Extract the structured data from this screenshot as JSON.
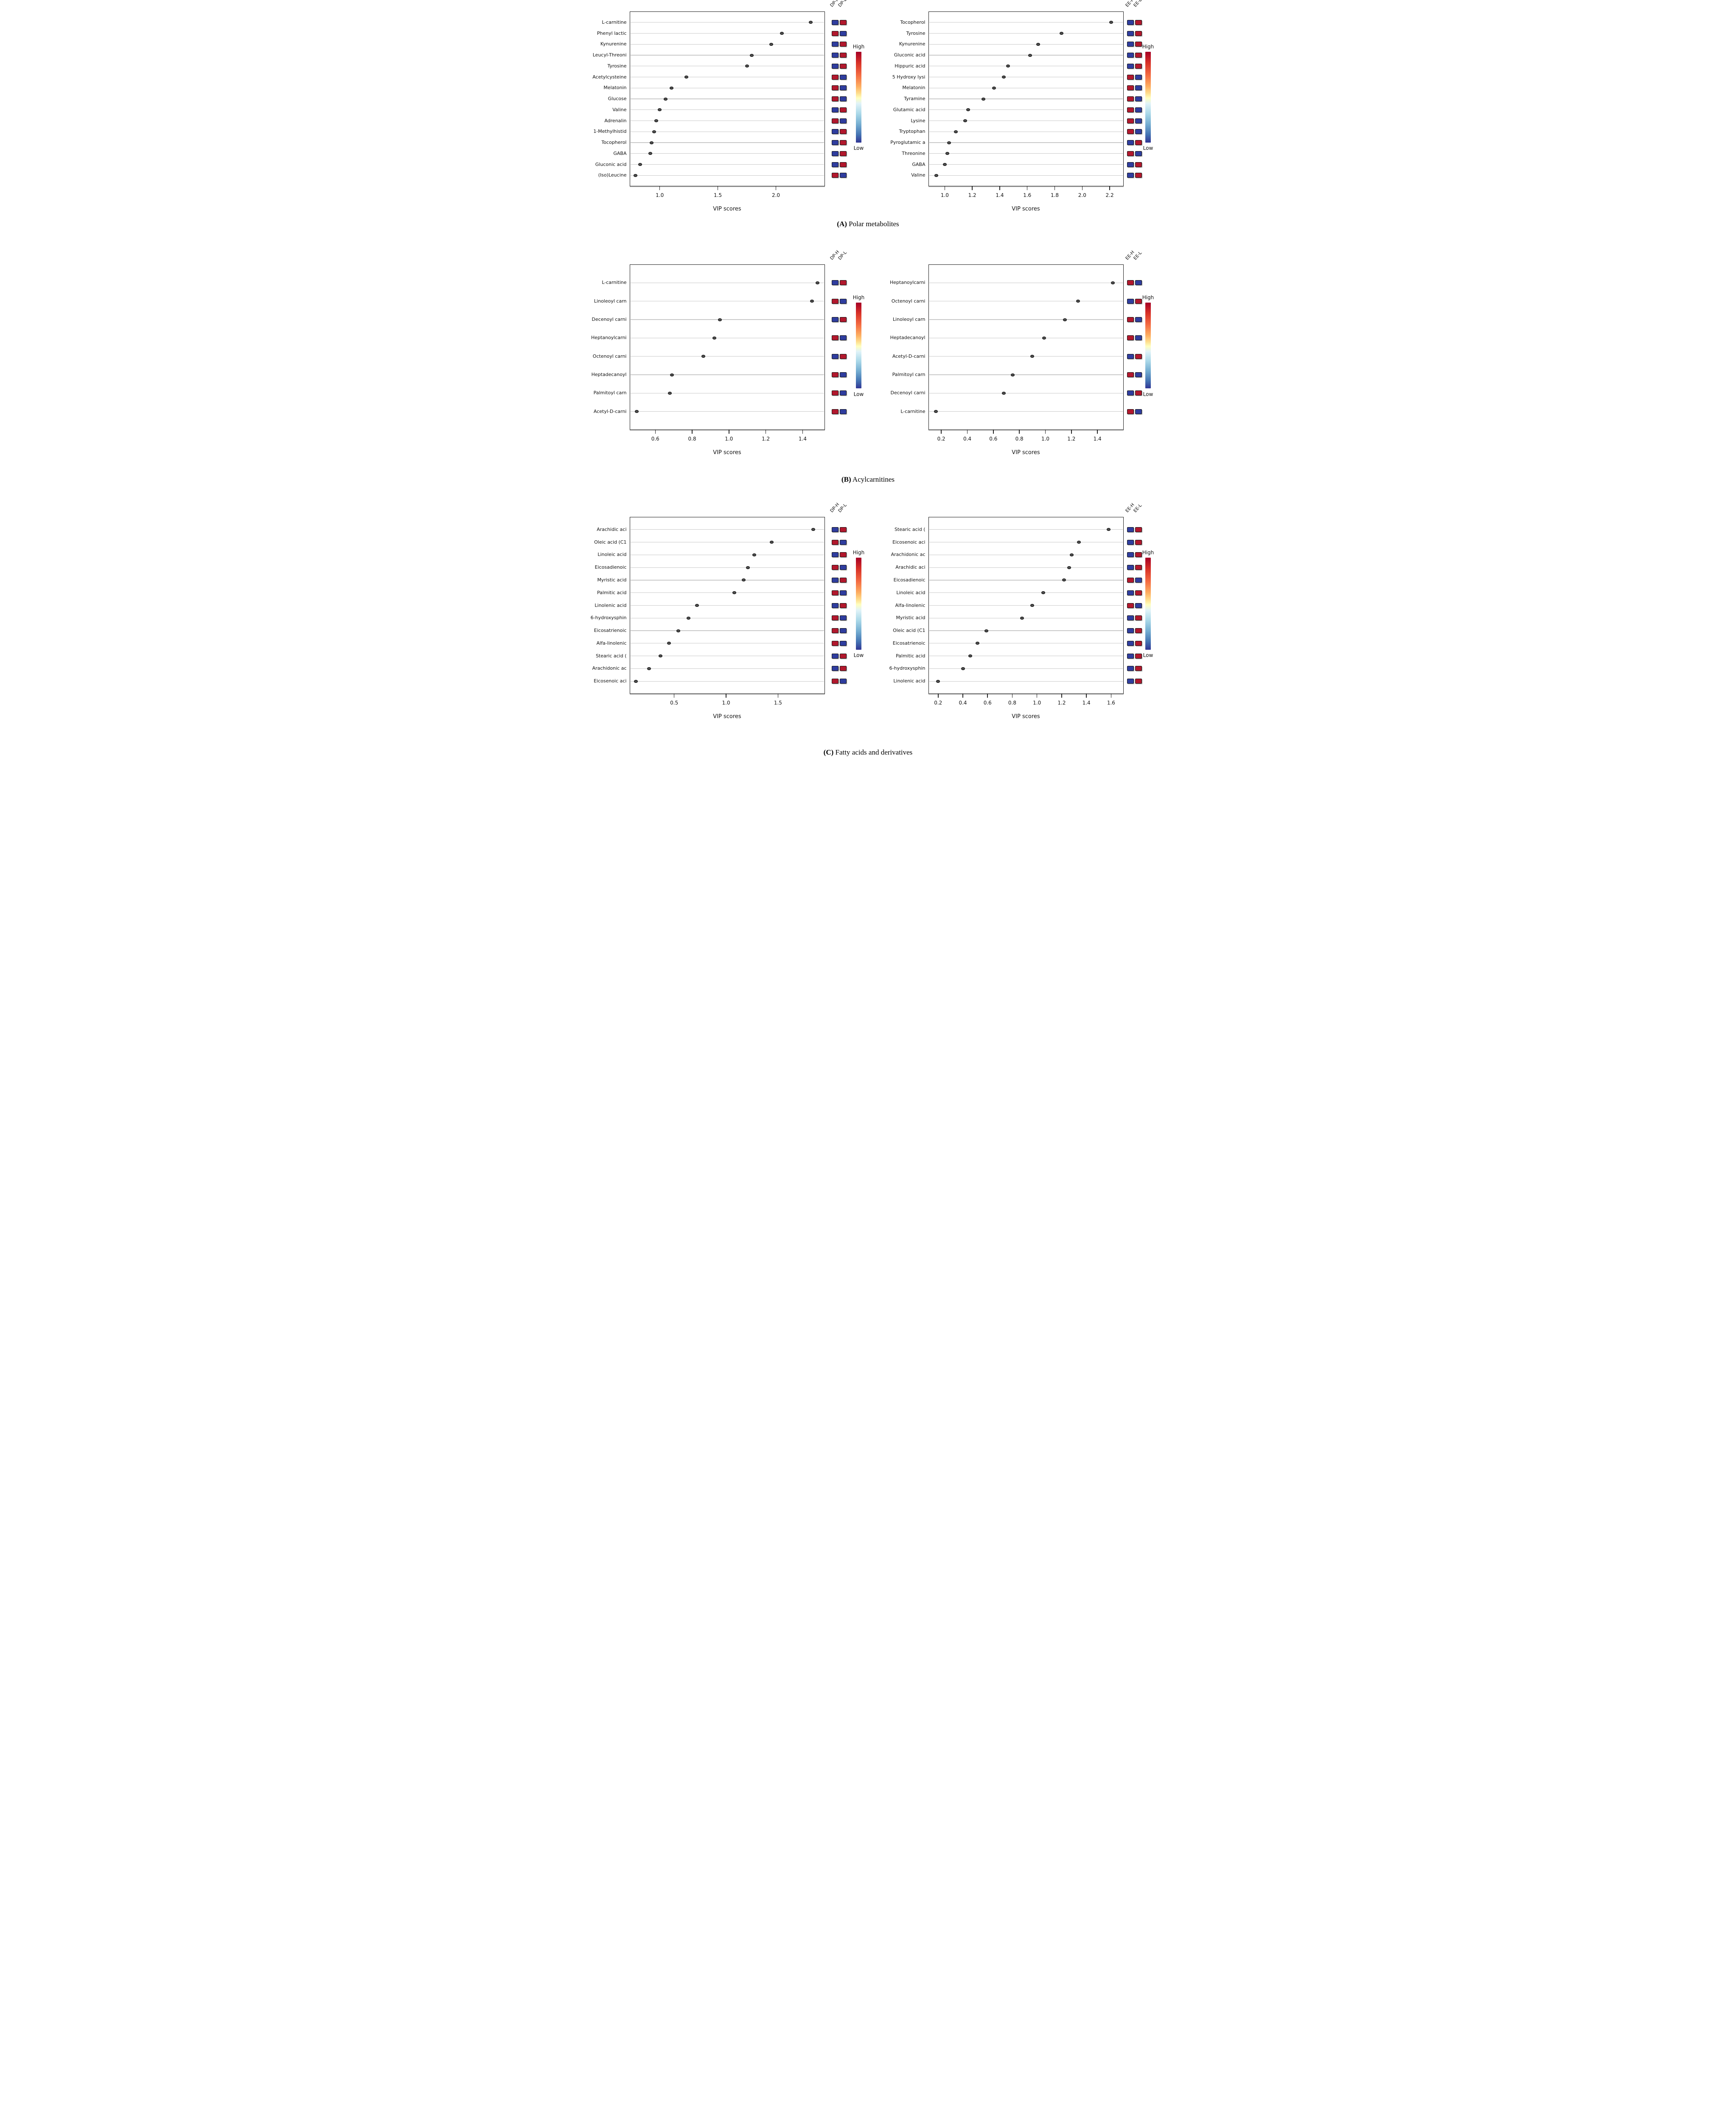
{
  "figure": {
    "sections": [
      {
        "letter": "A",
        "title": "Polar metabolites"
      },
      {
        "letter": "B",
        "title": "Acylcarnitines"
      },
      {
        "letter": "C",
        "title": "Fatty acids and derivatives"
      }
    ]
  },
  "colors": {
    "red": "#B1182D",
    "blue": "#2F3D9E",
    "dot_fill": "#4d4d4d",
    "dot_stroke": "#000000",
    "gridline": "#c9c9c9",
    "gradient_top": "#a50026",
    "gradient_bottom": "#313695"
  },
  "chart_data": [
    {
      "type": "scatter",
      "section": "A",
      "position": "left",
      "xlabel": "VIP scores",
      "x_ticks": [
        1.0,
        1.5,
        2.0
      ],
      "xlim": [
        0.74,
        2.42
      ],
      "grid": true,
      "heatmap_columns": [
        "DP-H",
        "DP-L"
      ],
      "legend": {
        "high_label": "High",
        "low_label": "Low",
        "position": "right",
        "meaning": "red=High, blue=Low"
      },
      "rows": [
        {
          "label": "L-carnitine",
          "vip_score": 2.3,
          "heatmap": [
            "blue",
            "red"
          ]
        },
        {
          "label": "Phenyl lactic",
          "vip_score": 2.05,
          "heatmap": [
            "red",
            "blue"
          ]
        },
        {
          "label": "Kynurenine",
          "vip_score": 1.96,
          "heatmap": [
            "blue",
            "red"
          ]
        },
        {
          "label": "Leucyl-Threoni",
          "vip_score": 1.79,
          "heatmap": [
            "blue",
            "red"
          ]
        },
        {
          "label": "Tyrosine",
          "vip_score": 1.75,
          "heatmap": [
            "blue",
            "red"
          ]
        },
        {
          "label": "Acetylcysteine",
          "vip_score": 1.23,
          "heatmap": [
            "red",
            "blue"
          ]
        },
        {
          "label": "Melatonin",
          "vip_score": 1.1,
          "heatmap": [
            "red",
            "blue"
          ]
        },
        {
          "label": "Glucose",
          "vip_score": 1.05,
          "heatmap": [
            "red",
            "blue"
          ]
        },
        {
          "label": "Valine",
          "vip_score": 1.0,
          "heatmap": [
            "blue",
            "red"
          ]
        },
        {
          "label": "Adrenalin",
          "vip_score": 0.97,
          "heatmap": [
            "red",
            "blue"
          ]
        },
        {
          "label": "1-Methylhistid",
          "vip_score": 0.95,
          "heatmap": [
            "blue",
            "red"
          ]
        },
        {
          "label": "Tocopherol",
          "vip_score": 0.93,
          "heatmap": [
            "blue",
            "red"
          ]
        },
        {
          "label": "GABA",
          "vip_score": 0.92,
          "heatmap": [
            "blue",
            "red"
          ]
        },
        {
          "label": "Gluconic acid",
          "vip_score": 0.83,
          "heatmap": [
            "blue",
            "red"
          ]
        },
        {
          "label": "(Iso)Leucine",
          "vip_score": 0.79,
          "heatmap": [
            "red",
            "blue"
          ]
        }
      ]
    },
    {
      "type": "scatter",
      "section": "A",
      "position": "right",
      "xlabel": "VIP scores",
      "x_ticks": [
        1.0,
        1.2,
        1.4,
        1.6,
        1.8,
        2.0,
        2.2
      ],
      "xlim": [
        0.88,
        2.3
      ],
      "grid": true,
      "heatmap_columns": [
        "EE-H",
        "EE-L"
      ],
      "legend": {
        "high_label": "High",
        "low_label": "Low",
        "position": "right",
        "meaning": "red=High, blue=Low"
      },
      "rows": [
        {
          "label": "Tocopherol",
          "vip_score": 2.21,
          "heatmap": [
            "blue",
            "red"
          ]
        },
        {
          "label": "Tyrosine",
          "vip_score": 1.85,
          "heatmap": [
            "blue",
            "red"
          ]
        },
        {
          "label": "Kynurenine",
          "vip_score": 1.68,
          "heatmap": [
            "blue",
            "red"
          ]
        },
        {
          "label": "Gluconic acid",
          "vip_score": 1.62,
          "heatmap": [
            "blue",
            "red"
          ]
        },
        {
          "label": "Hippuric acid",
          "vip_score": 1.46,
          "heatmap": [
            "blue",
            "red"
          ]
        },
        {
          "label": "5 Hydroxy lysi",
          "vip_score": 1.43,
          "heatmap": [
            "red",
            "blue"
          ]
        },
        {
          "label": "Melatonin",
          "vip_score": 1.36,
          "heatmap": [
            "red",
            "blue"
          ]
        },
        {
          "label": "Tyramine",
          "vip_score": 1.28,
          "heatmap": [
            "red",
            "blue"
          ]
        },
        {
          "label": "Glutamic acid",
          "vip_score": 1.17,
          "heatmap": [
            "red",
            "blue"
          ]
        },
        {
          "label": "Lysine",
          "vip_score": 1.15,
          "heatmap": [
            "red",
            "blue"
          ]
        },
        {
          "label": "Tryptophan",
          "vip_score": 1.08,
          "heatmap": [
            "red",
            "blue"
          ]
        },
        {
          "label": "Pyroglutamic a",
          "vip_score": 1.03,
          "heatmap": [
            "blue",
            "red"
          ]
        },
        {
          "label": "Threonine",
          "vip_score": 1.02,
          "heatmap": [
            "red",
            "blue"
          ]
        },
        {
          "label": "GABA",
          "vip_score": 1.0,
          "heatmap": [
            "blue",
            "red"
          ]
        },
        {
          "label": "Valine",
          "vip_score": 0.94,
          "heatmap": [
            "blue",
            "red"
          ]
        }
      ]
    },
    {
      "type": "scatter",
      "section": "B",
      "position": "left",
      "xlabel": "VIP scores",
      "x_ticks": [
        0.6,
        0.8,
        1.0,
        1.2,
        1.4
      ],
      "xlim": [
        0.46,
        1.52
      ],
      "grid": true,
      "heatmap_columns": [
        "DP-H",
        "DP-L"
      ],
      "legend": {
        "high_label": "High",
        "low_label": "Low",
        "position": "right",
        "meaning": "red=High, blue=Low"
      },
      "rows": [
        {
          "label": "L-carnitine",
          "vip_score": 1.48,
          "heatmap": [
            "blue",
            "red"
          ]
        },
        {
          "label": "Linoleoyl carn",
          "vip_score": 1.45,
          "heatmap": [
            "red",
            "blue"
          ]
        },
        {
          "label": "Decenoyl carni",
          "vip_score": 0.95,
          "heatmap": [
            "blue",
            "red"
          ]
        },
        {
          "label": "Heptanoylcarni",
          "vip_score": 0.92,
          "heatmap": [
            "red",
            "blue"
          ]
        },
        {
          "label": "Octenoyl carni",
          "vip_score": 0.86,
          "heatmap": [
            "blue",
            "red"
          ]
        },
        {
          "label": "Heptadecanoyl",
          "vip_score": 0.69,
          "heatmap": [
            "red",
            "blue"
          ]
        },
        {
          "label": "Palmitoyl carn",
          "vip_score": 0.68,
          "heatmap": [
            "red",
            "blue"
          ]
        },
        {
          "label": "Acetyl-D-carni",
          "vip_score": 0.5,
          "heatmap": [
            "red",
            "blue"
          ]
        }
      ]
    },
    {
      "type": "scatter",
      "section": "B",
      "position": "right",
      "xlabel": "VIP scores",
      "x_ticks": [
        0.2,
        0.4,
        0.6,
        0.8,
        1.0,
        1.2,
        1.4
      ],
      "xlim": [
        0.1,
        1.6
      ],
      "grid": true,
      "heatmap_columns": [
        "EE-H",
        "EE-L"
      ],
      "legend": {
        "high_label": "High",
        "low_label": "Low",
        "position": "right",
        "meaning": "red=High, blue=Low"
      },
      "rows": [
        {
          "label": "Heptanoylcarni",
          "vip_score": 1.52,
          "heatmap": [
            "red",
            "blue"
          ]
        },
        {
          "label": "Octenoyl carni",
          "vip_score": 1.25,
          "heatmap": [
            "blue",
            "red"
          ]
        },
        {
          "label": "Linoleoyl carn",
          "vip_score": 1.15,
          "heatmap": [
            "red",
            "blue"
          ]
        },
        {
          "label": "Heptadecanoyl",
          "vip_score": 0.99,
          "heatmap": [
            "red",
            "blue"
          ]
        },
        {
          "label": "Acetyl-D-carni",
          "vip_score": 0.9,
          "heatmap": [
            "blue",
            "red"
          ]
        },
        {
          "label": "Palmitoyl carn",
          "vip_score": 0.75,
          "heatmap": [
            "red",
            "blue"
          ]
        },
        {
          "label": "Decenoyl carni",
          "vip_score": 0.68,
          "heatmap": [
            "blue",
            "red"
          ]
        },
        {
          "label": "L-carnitine",
          "vip_score": 0.16,
          "heatmap": [
            "red",
            "blue"
          ]
        }
      ]
    },
    {
      "type": "scatter",
      "section": "C",
      "position": "left",
      "xlabel": "VIP scores",
      "x_ticks": [
        0.5,
        1.0,
        1.5
      ],
      "xlim": [
        0.07,
        1.95
      ],
      "grid": true,
      "heatmap_columns": [
        "DP-H",
        "DP-L"
      ],
      "legend": {
        "high_label": "High",
        "low_label": "Low",
        "position": "right",
        "meaning": "red=High, blue=Low"
      },
      "rows": [
        {
          "label": "Arachidic  aci",
          "vip_score": 1.84,
          "heatmap": [
            "blue",
            "red"
          ]
        },
        {
          "label": "Oleic acid (C1",
          "vip_score": 1.44,
          "heatmap": [
            "red",
            "blue"
          ]
        },
        {
          "label": "Linoleic acid",
          "vip_score": 1.27,
          "heatmap": [
            "blue",
            "red"
          ]
        },
        {
          "label": "Eicosadienoic",
          "vip_score": 1.21,
          "heatmap": [
            "red",
            "blue"
          ]
        },
        {
          "label": "Myristic acid",
          "vip_score": 1.17,
          "heatmap": [
            "blue",
            "red"
          ]
        },
        {
          "label": "Palmitic acid",
          "vip_score": 1.08,
          "heatmap": [
            "red",
            "blue"
          ]
        },
        {
          "label": "Linolenic acid",
          "vip_score": 0.72,
          "heatmap": [
            "blue",
            "red"
          ]
        },
        {
          "label": "6-hydroxysphin",
          "vip_score": 0.64,
          "heatmap": [
            "red",
            "blue"
          ]
        },
        {
          "label": "Eicosatrienoic",
          "vip_score": 0.54,
          "heatmap": [
            "red",
            "blue"
          ]
        },
        {
          "label": "Alfa-linolenic",
          "vip_score": 0.45,
          "heatmap": [
            "red",
            "blue"
          ]
        },
        {
          "label": "Stearic acid (",
          "vip_score": 0.37,
          "heatmap": [
            "blue",
            "red"
          ]
        },
        {
          "label": "Arachidonic ac",
          "vip_score": 0.26,
          "heatmap": [
            "blue",
            "red"
          ]
        },
        {
          "label": "Eicosenoic aci",
          "vip_score": 0.13,
          "heatmap": [
            "red",
            "blue"
          ]
        }
      ]
    },
    {
      "type": "scatter",
      "section": "C",
      "position": "right",
      "xlabel": "VIP scores",
      "x_ticks": [
        0.2,
        0.4,
        0.6,
        0.8,
        1.0,
        1.2,
        1.4,
        1.6
      ],
      "xlim": [
        0.12,
        1.7
      ],
      "grid": true,
      "heatmap_columns": [
        "EE-H",
        "EE-L"
      ],
      "legend": {
        "high_label": "High",
        "low_label": "Low",
        "position": "right",
        "meaning": "red=High, blue=Low"
      },
      "rows": [
        {
          "label": "Stearic acid (",
          "vip_score": 1.58,
          "heatmap": [
            "blue",
            "red"
          ]
        },
        {
          "label": "Eicosenoic aci",
          "vip_score": 1.34,
          "heatmap": [
            "blue",
            "red"
          ]
        },
        {
          "label": "Arachidonic ac",
          "vip_score": 1.28,
          "heatmap": [
            "blue",
            "red"
          ]
        },
        {
          "label": "Arachidic  aci",
          "vip_score": 1.26,
          "heatmap": [
            "blue",
            "red"
          ]
        },
        {
          "label": "Eicosadienoic",
          "vip_score": 1.22,
          "heatmap": [
            "red",
            "blue"
          ]
        },
        {
          "label": "Linoleic acid",
          "vip_score": 1.05,
          "heatmap": [
            "blue",
            "red"
          ]
        },
        {
          "label": "Alfa-linolenic",
          "vip_score": 0.96,
          "heatmap": [
            "red",
            "blue"
          ]
        },
        {
          "label": "Myristic acid",
          "vip_score": 0.88,
          "heatmap": [
            "blue",
            "red"
          ]
        },
        {
          "label": "Oleic acid (C1",
          "vip_score": 0.59,
          "heatmap": [
            "blue",
            "red"
          ]
        },
        {
          "label": "Eicosatrienoic",
          "vip_score": 0.52,
          "heatmap": [
            "blue",
            "red"
          ]
        },
        {
          "label": "Palmitic acid",
          "vip_score": 0.46,
          "heatmap": [
            "blue",
            "red"
          ]
        },
        {
          "label": "6-hydroxysphin",
          "vip_score": 0.4,
          "heatmap": [
            "blue",
            "red"
          ]
        },
        {
          "label": "Linolenic acid",
          "vip_score": 0.2,
          "heatmap": [
            "blue",
            "red"
          ]
        }
      ]
    }
  ]
}
